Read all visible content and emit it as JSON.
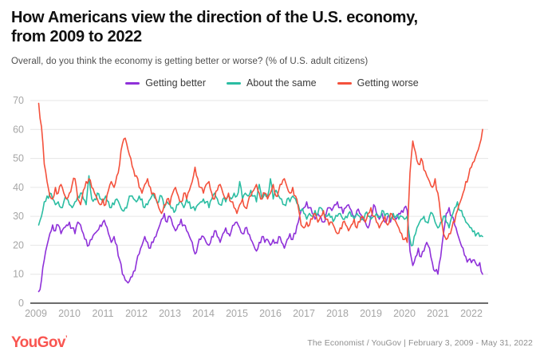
{
  "header": {
    "title_line1": "How Americans view the direction of the U.S. economy,",
    "title_line2": "from 2009 to 2022",
    "subtitle": "Overall, do you think the economy is getting better or worse? (% of U.S. adult citizens)"
  },
  "footer": {
    "logo_text": "YouGov",
    "logo_mark": "’",
    "logo_color": "#F95550",
    "source": "The Economist / YouGov | February 3, 2009 - May 31, 2022"
  },
  "chart_data": {
    "type": "line",
    "title": "How Americans view the direction of the U.S. economy, from 2009 to 2022",
    "xlabel": "",
    "ylabel": "% of U.S. adult citizens",
    "ylim": [
      0,
      70
    ],
    "y_ticks": [
      0,
      10,
      20,
      30,
      40,
      50,
      60,
      70
    ],
    "x_ticks": [
      2009,
      2010,
      2011,
      2012,
      2013,
      2014,
      2015,
      2016,
      2017,
      2018,
      2019,
      2020,
      2021,
      2022
    ],
    "grid": "horizontal",
    "legend_position": "top",
    "x_start": 2009.0833,
    "x_step": 0.083333,
    "colors": {
      "grid": "#e6e6e6",
      "axis": "#3c3c3c",
      "tick_label": "#a6a6a6"
    },
    "series": [
      {
        "name": "Getting better",
        "color": "#8F31D9",
        "values": [
          4,
          8,
          15,
          20,
          24,
          27,
          25,
          27,
          24,
          26,
          27,
          28,
          26,
          24,
          28,
          27,
          24,
          22,
          20,
          22,
          24,
          25,
          27,
          28,
          27,
          24,
          21,
          23,
          20,
          15,
          10,
          8,
          7,
          9,
          11,
          14,
          17,
          20,
          23,
          21,
          19,
          21,
          23,
          26,
          29,
          31,
          28,
          30,
          27,
          25,
          27,
          29,
          27,
          25,
          23,
          21,
          17,
          20,
          22,
          23,
          21,
          20,
          23,
          25,
          23,
          21,
          24,
          26,
          24,
          25,
          27,
          28,
          26,
          24,
          26,
          24,
          22,
          20,
          18,
          21,
          23,
          21,
          22,
          20,
          22,
          21,
          23,
          21,
          19,
          22,
          24,
          22,
          24,
          28,
          32,
          33,
          35,
          33,
          31,
          29,
          31,
          30,
          28,
          31,
          33,
          32,
          34,
          35,
          33,
          31,
          33,
          34,
          32,
          30,
          32,
          31,
          29,
          28,
          26,
          30,
          34,
          31,
          29,
          31,
          28,
          30,
          28,
          30,
          29,
          31,
          32,
          33,
          32,
          18,
          13,
          16,
          19,
          16,
          18,
          21,
          19,
          14,
          11,
          10,
          16,
          24,
          31,
          33,
          30,
          27,
          24,
          21,
          19,
          16,
          15,
          14,
          15,
          13,
          14,
          10
        ]
      },
      {
        "name": "About the same",
        "color": "#2BBDA2",
        "values": [
          27,
          30,
          35,
          37,
          38,
          36,
          34,
          35,
          33,
          35,
          36,
          34,
          33,
          35,
          37,
          38,
          36,
          34,
          44,
          36,
          36,
          38,
          36,
          35,
          37,
          35,
          33,
          34,
          36,
          34,
          32,
          33,
          35,
          37,
          36,
          35,
          37,
          36,
          33,
          34,
          36,
          38,
          36,
          35,
          37,
          33,
          35,
          34,
          33,
          32,
          34,
          35,
          33,
          36,
          35,
          33,
          32,
          34,
          35,
          36,
          35,
          33,
          36,
          38,
          36,
          34,
          36,
          35,
          37,
          36,
          38,
          37,
          42,
          36,
          38,
          37,
          39,
          37,
          35,
          41,
          36,
          38,
          37,
          43,
          36,
          39,
          37,
          36,
          34,
          36,
          35,
          37,
          36,
          34,
          32,
          31,
          29,
          31,
          30,
          32,
          31,
          33,
          31,
          30,
          31,
          30,
          29,
          30,
          31,
          29,
          30,
          31,
          30,
          29,
          31,
          30,
          29,
          31,
          30,
          29,
          30,
          31,
          30,
          32,
          30,
          31,
          29,
          31,
          30,
          29,
          30,
          29,
          30,
          22,
          20,
          24,
          27,
          29,
          30,
          28,
          30,
          31,
          28,
          26,
          28,
          30,
          28,
          26,
          30,
          33,
          35,
          32,
          30,
          28,
          27,
          26,
          25,
          24,
          23,
          23
        ]
      },
      {
        "name": "Getting worse",
        "color": "#F4513C",
        "values": [
          69,
          61,
          48,
          42,
          37,
          36,
          40,
          38,
          41,
          38,
          36,
          38,
          41,
          43,
          36,
          34,
          39,
          42,
          43,
          40,
          38,
          36,
          34,
          36,
          34,
          39,
          42,
          40,
          44,
          48,
          55,
          57,
          53,
          50,
          46,
          44,
          40,
          38,
          41,
          43,
          40,
          38,
          36,
          33,
          31,
          34,
          36,
          34,
          38,
          40,
          37,
          35,
          38,
          36,
          39,
          42,
          47,
          43,
          40,
          38,
          41,
          42,
          38,
          36,
          39,
          41,
          38,
          36,
          38,
          35,
          33,
          31,
          34,
          36,
          33,
          35,
          37,
          39,
          41,
          38,
          36,
          38,
          36,
          38,
          41,
          37,
          39,
          41,
          43,
          40,
          38,
          40,
          37,
          33,
          27,
          26,
          28,
          27,
          29,
          31,
          28,
          30,
          32,
          29,
          27,
          28,
          26,
          24,
          26,
          28,
          27,
          25,
          27,
          29,
          26,
          28,
          30,
          28,
          31,
          33,
          30,
          28,
          26,
          28,
          30,
          27,
          31,
          29,
          28,
          26,
          24,
          22,
          21,
          45,
          56,
          52,
          48,
          50,
          46,
          44,
          42,
          40,
          43,
          38,
          30,
          24,
          22,
          24,
          26,
          28,
          32,
          35,
          38,
          42,
          44,
          47,
          49,
          52,
          55,
          60
        ]
      }
    ]
  }
}
